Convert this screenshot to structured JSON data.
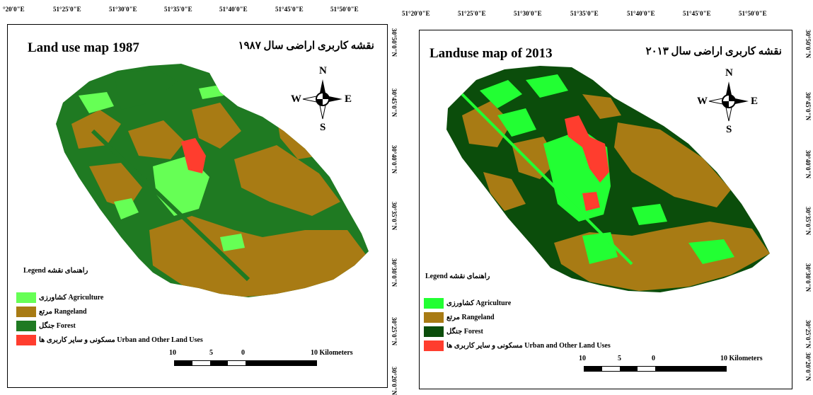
{
  "colors": {
    "agriculture": "#66ff55",
    "rangeland": "#a87b14",
    "forest_1987": "#1f7a22",
    "forest_2013": "#0b4d0b",
    "urban": "#ff3d2e",
    "agri_2013": "#22ff33"
  },
  "left_map": {
    "title_en": "Land use map 1987",
    "title_fa": "نقشه کاربری اراضی سال ۱۹۸۷",
    "top_coords": [
      "°20'0\"E",
      "51°25'0\"E",
      "51°30'0\"E",
      "51°35'0\"E",
      "51°40'0\"E",
      "51°45'0\"E",
      "51°50'0\"E"
    ],
    "right_coords": [
      "30°50'0\"N",
      "30°45'0\"N",
      "30°40'0\"N",
      "30°35'0\"N",
      "30°30'0\"N",
      "30°25'0\"N",
      "30°20'0\"N"
    ],
    "compass": {
      "n": "N",
      "s": "S",
      "e": "E",
      "w": "W"
    },
    "legend_title": "Legend راهنمای نقشه",
    "legend": [
      {
        "label": "کشاورزی Agriculture",
        "key": "agriculture"
      },
      {
        "label": "مرتع Rangeland",
        "key": "rangeland"
      },
      {
        "label": "جنگل Forest",
        "key": "forest"
      },
      {
        "label": "مسکونی و سایر کاربری ها Urban and Other Land Uses",
        "key": "urban"
      }
    ],
    "scale": {
      "l1": "10",
      "l2": "5",
      "l3": "0",
      "l4": "10 Kilometers"
    }
  },
  "right_map": {
    "title_en": "Landuse map of 2013",
    "title_fa": "نقشه کاربری اراضی سال ۲۰۱۳",
    "top_coords": [
      "51°20'0\"E",
      "51°25'0\"E",
      "51°30'0\"E",
      "51°35'0\"E",
      "51°40'0\"E",
      "51°45'0\"E",
      "51°50'0\"E"
    ],
    "right_coords": [
      "30°50'0\"N",
      "30°45'0\"N",
      "30°40'0\"N",
      "30°35'0\"N",
      "30°30'0\"N",
      "30°25'0\"N",
      "30°20'0\"N"
    ],
    "compass": {
      "n": "N",
      "s": "S",
      "e": "E",
      "w": "W"
    },
    "legend_title": "Legend راهنمای نقشه",
    "legend": [
      {
        "label": "کشاورزی Agriculture",
        "key": "agriculture"
      },
      {
        "label": "مرتع Rangeland",
        "key": "rangeland"
      },
      {
        "label": "جنگل Forest",
        "key": "forest"
      },
      {
        "label": "مسکونی و سایر کاربری ها Urban and Other Land Uses",
        "key": "urban"
      }
    ],
    "scale": {
      "l1": "10",
      "l2": "5",
      "l3": "0",
      "l4": "10 Kilometers"
    }
  }
}
